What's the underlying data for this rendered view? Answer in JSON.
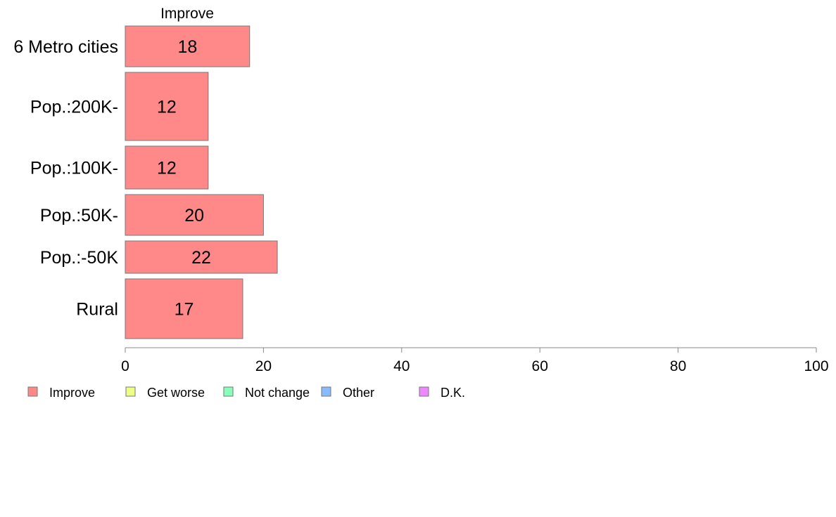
{
  "chart_data": {
    "type": "bar",
    "orientation": "horizontal",
    "title": "Improve",
    "categories": [
      "6 Metro cities",
      "Pop.:200K-",
      "Pop.:100K-",
      "Pop.:50K-",
      "Pop.:-50K",
      "Rural"
    ],
    "series": [
      {
        "name": "Improve",
        "values": [
          18,
          12,
          12,
          20,
          22,
          17
        ],
        "color": "#ff8888"
      }
    ],
    "xlim": [
      0,
      100
    ],
    "xticks": [
      0,
      20,
      40,
      60,
      80,
      100
    ],
    "grid": false,
    "legend_position": "bottom",
    "legend": [
      {
        "label": "Improve",
        "color": "#ff8888"
      },
      {
        "label": "Get worse",
        "color": "#eeff88"
      },
      {
        "label": "Not change",
        "color": "#88ffbb"
      },
      {
        "label": "Other",
        "color": "#88bbff"
      },
      {
        "label": "D.K.",
        "color": "#ee88ff"
      }
    ]
  }
}
